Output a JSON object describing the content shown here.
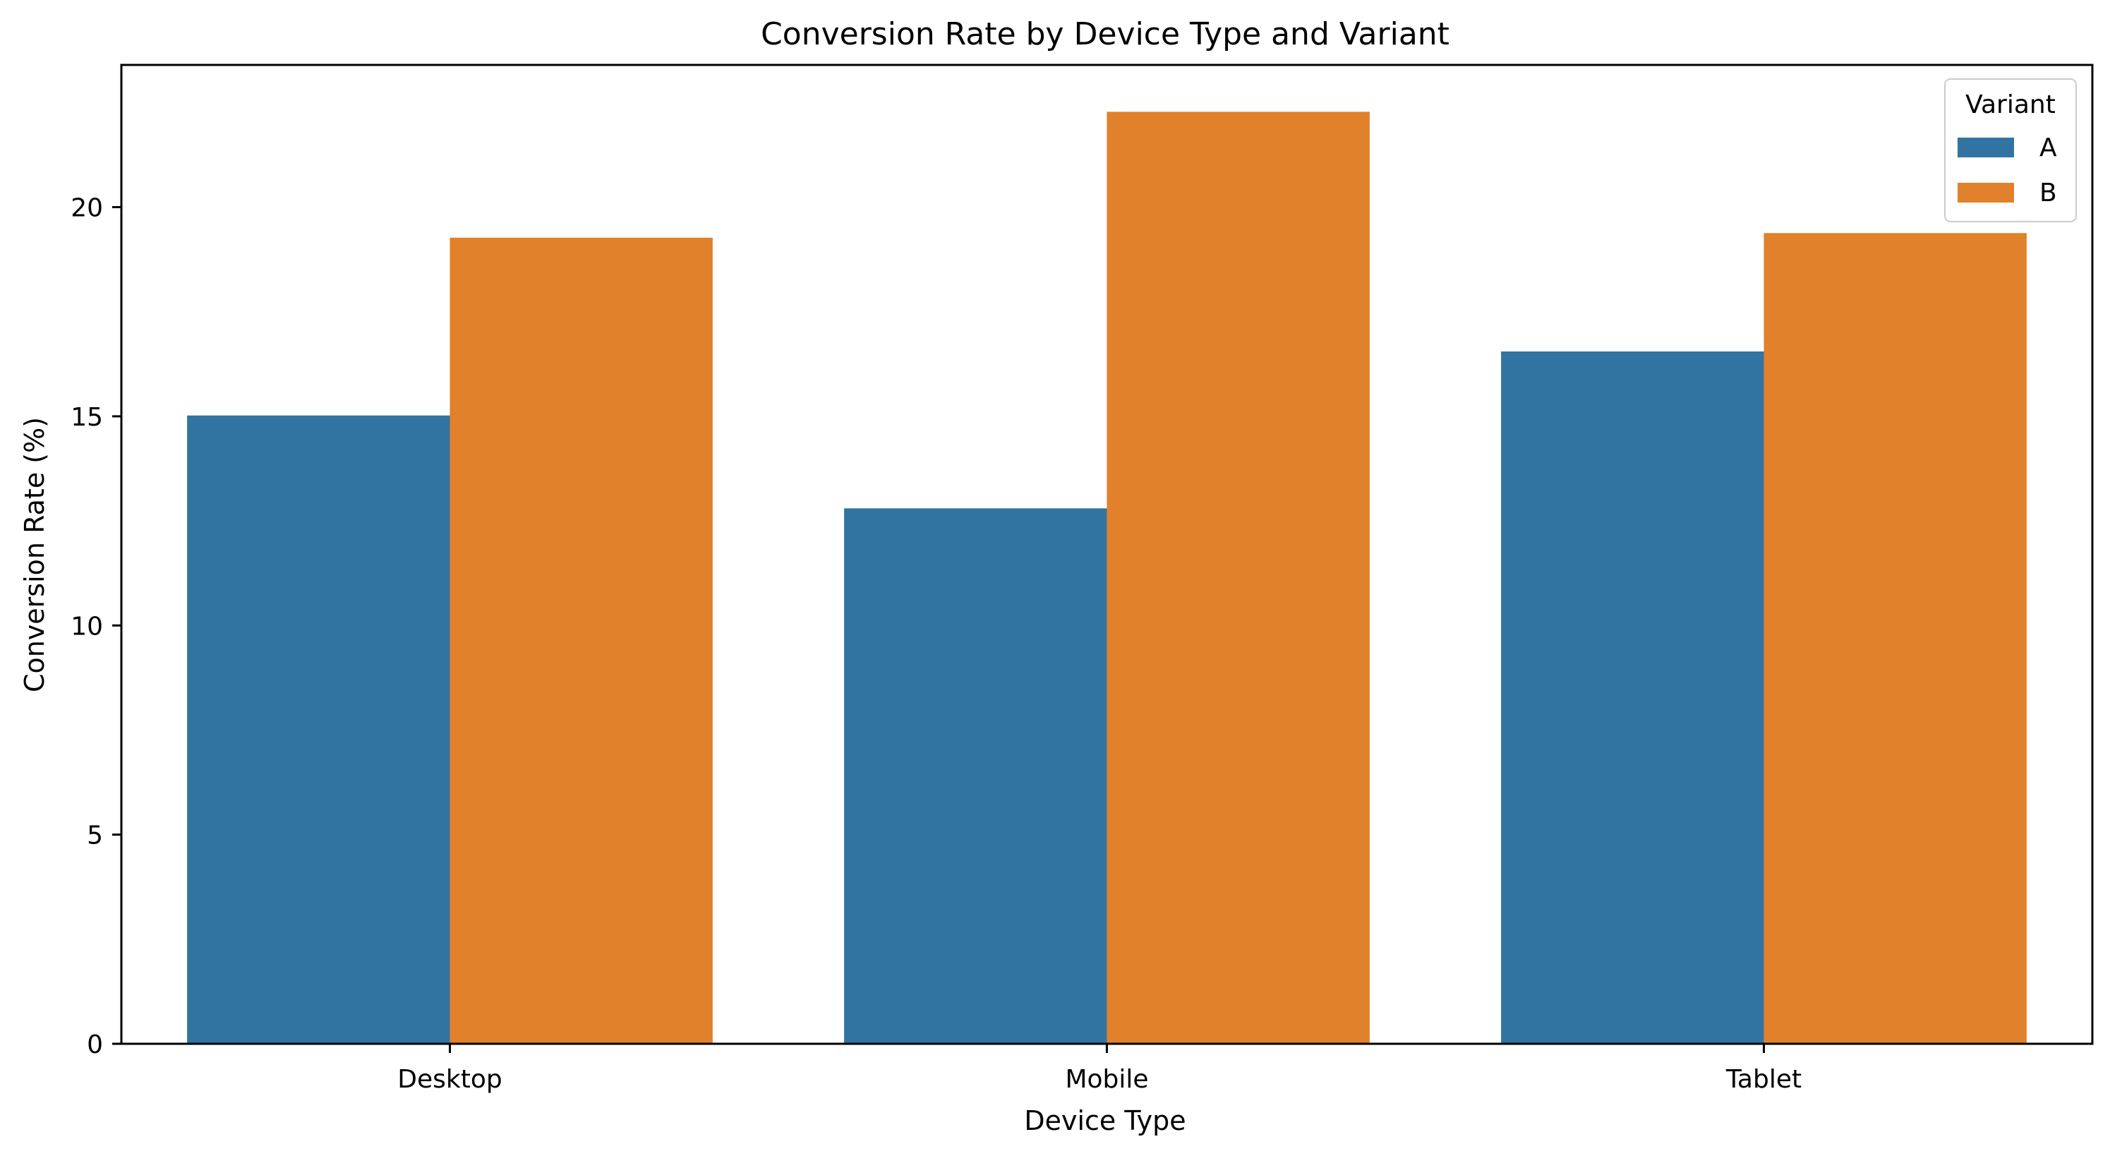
{
  "chart_data": {
    "type": "bar",
    "title": "Conversion Rate by Device Type and Variant",
    "xlabel": "Device Type",
    "ylabel": "Conversion Rate (%)",
    "categories": [
      "Desktop",
      "Mobile",
      "Tablet"
    ],
    "series": [
      {
        "name": "A",
        "values": [
          15.02,
          12.8,
          16.55
        ],
        "color": "#3274a1"
      },
      {
        "name": "B",
        "values": [
          19.27,
          22.28,
          19.38
        ],
        "color": "#e1812c"
      }
    ],
    "ylim": [
      0,
      23.4
    ],
    "yticks": [
      0,
      5,
      10,
      15,
      20
    ],
    "legend": {
      "title": "Variant",
      "position": "top-right"
    },
    "grid": false
  }
}
